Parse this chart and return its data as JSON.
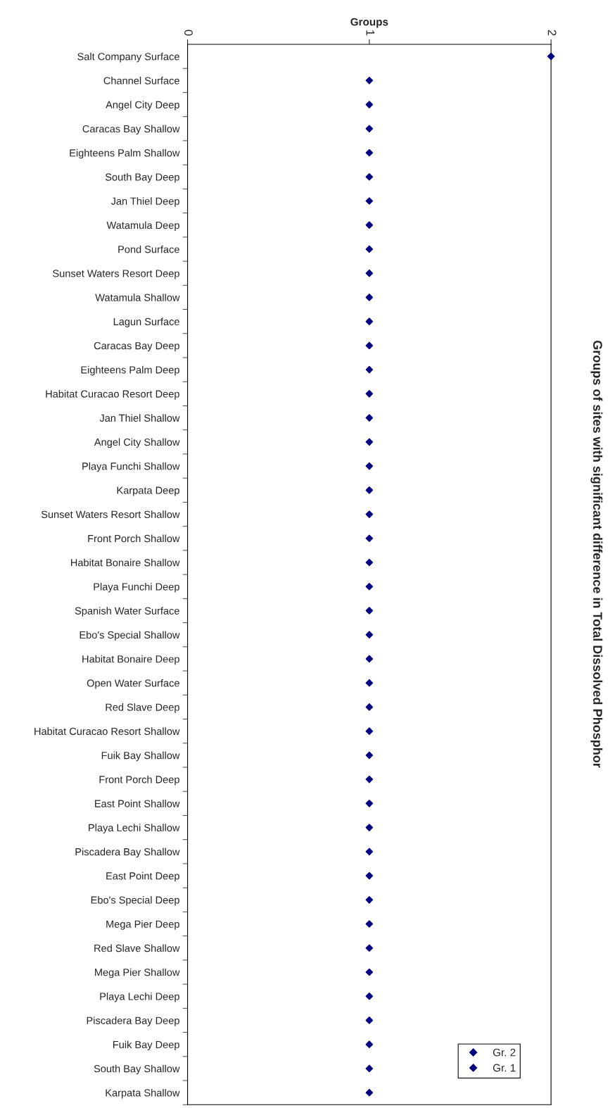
{
  "chart_data": {
    "type": "scatter",
    "orientation": "horizontal",
    "title": "Groups of sites with significant difference in Total Dissolved Phosphor",
    "xlabel": "Groups",
    "categories": [
      "Salt Company Surface",
      "Channel Surface",
      "Angel City Deep",
      "Caracas Bay Shallow",
      "Eighteens Palm Shallow",
      "South Bay Deep",
      "Jan Thiel Deep",
      "Watamula Deep",
      "Pond Surface",
      "Sunset Waters Resort Deep",
      "Watamula Shallow",
      "Lagun Surface",
      "Caracas Bay Deep",
      "Eighteens Palm Deep",
      "Habitat Curacao Resort Deep",
      "Jan Thiel Shallow",
      "Angel City Shallow",
      "Playa Funchi Shallow",
      "Karpata Deep",
      "Sunset Waters Resort Shallow",
      "Front Porch Shallow",
      "Habitat Bonaire Shallow",
      "Playa Funchi Deep",
      "Spanish Water Surface",
      "Ebo's Special Shallow",
      "Habitat Bonaire Deep",
      "Open Water Surface",
      "Red Slave Deep",
      "Habitat Curacao Resort Shallow",
      "Fuik Bay Shallow",
      "Front Porch Deep",
      "East Point Shallow",
      "Playa Lechi Shallow",
      "Piscadera Bay Shallow",
      "East Point Deep",
      "Ebo's Special Deep",
      "Mega Pier Deep",
      "Red Slave Shallow",
      "Mega Pier Shallow",
      "Playa Lechi Deep",
      "Piscadera Bay Deep",
      "Fuik Bay Deep",
      "South Bay Shallow",
      "Karpata Shallow"
    ],
    "series": [
      {
        "name": "Gr. 2",
        "color": "#000080",
        "values": [
          2,
          null,
          null,
          null,
          null,
          null,
          null,
          null,
          null,
          null,
          null,
          null,
          null,
          null,
          null,
          null,
          null,
          null,
          null,
          null,
          null,
          null,
          null,
          null,
          null,
          null,
          null,
          null,
          null,
          null,
          null,
          null,
          null,
          null,
          null,
          null,
          null,
          null,
          null,
          null,
          null,
          null,
          null,
          null
        ]
      },
      {
        "name": "Gr. 1",
        "color": "#000080",
        "values": [
          null,
          1,
          1,
          1,
          1,
          1,
          1,
          1,
          1,
          1,
          1,
          1,
          1,
          1,
          1,
          1,
          1,
          1,
          1,
          1,
          1,
          1,
          1,
          1,
          1,
          1,
          1,
          1,
          1,
          1,
          1,
          1,
          1,
          1,
          1,
          1,
          1,
          1,
          1,
          1,
          1,
          1,
          1,
          1
        ]
      }
    ],
    "xlim": [
      0,
      2
    ],
    "xticks": [
      0,
      1,
      2
    ],
    "marker": "diamond",
    "legend": "bottom right",
    "grid": false
  }
}
